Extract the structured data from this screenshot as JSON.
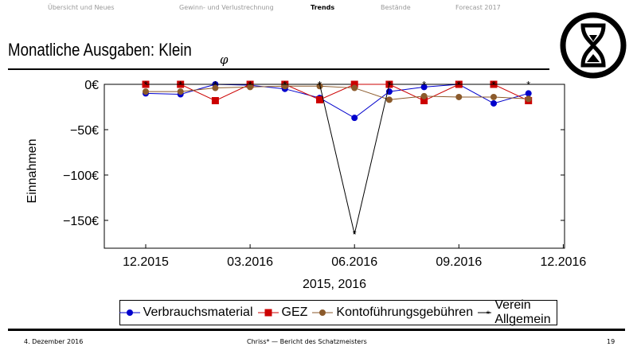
{
  "nav": [
    "Übersicht und Neues",
    "Gewinn- und Verlustrechnung",
    "Trends",
    "Bestände",
    "Forecast 2017"
  ],
  "nav_active": 2,
  "title": "Monatliche Ausgaben: Klein",
  "title_sub": "φ",
  "footer": {
    "date": "4. Dezember 2016",
    "center": "Chriss* — Bericht des Schatzmeisters",
    "page": "19"
  },
  "chart_data": {
    "type": "line",
    "title": "",
    "xlabel": "2015, 2016",
    "ylabel": "Einnahmen",
    "x": [
      "2015-12",
      "2016-01",
      "2016-02",
      "2016-03",
      "2016-04",
      "2016-05",
      "2016-06",
      "2016-07",
      "2016-08",
      "2016-09",
      "2016-10",
      "2016-11"
    ],
    "xticks": [
      "12.2015",
      "03.2016",
      "06.2016",
      "09.2016",
      "12.2016"
    ],
    "yticks": [
      "0€",
      "−50€",
      "−100€",
      "−150€"
    ],
    "ytick_values": [
      0,
      -50,
      -100,
      -150
    ],
    "ylim": [
      -185,
      0
    ],
    "legend_position": "bottom",
    "series": [
      {
        "name": "Verbrauchsmaterial",
        "color": "#0000cc",
        "marker": "circle",
        "values": [
          -10,
          -11,
          0,
          -1,
          -5,
          -15,
          -37,
          -8,
          -3,
          0,
          -21,
          -10
        ]
      },
      {
        "name": "GEZ",
        "color": "#cc0000",
        "marker": "square",
        "values": [
          0,
          0,
          -18,
          0,
          0,
          -17,
          0,
          0,
          -18,
          0,
          0,
          -18
        ]
      },
      {
        "name": "Kontoführungsgebühren",
        "color": "#8b5a2b",
        "marker": "circle",
        "values": [
          -8,
          -8,
          -4,
          -3,
          -2,
          -2,
          -4,
          -17,
          -13,
          -14,
          -14,
          -16
        ]
      },
      {
        "name": "Verein Allgemein",
        "color": "#000000",
        "marker": "star",
        "values": [
          0,
          0,
          0,
          0,
          0,
          0,
          -165,
          0,
          0,
          0,
          0,
          0
        ]
      }
    ]
  }
}
